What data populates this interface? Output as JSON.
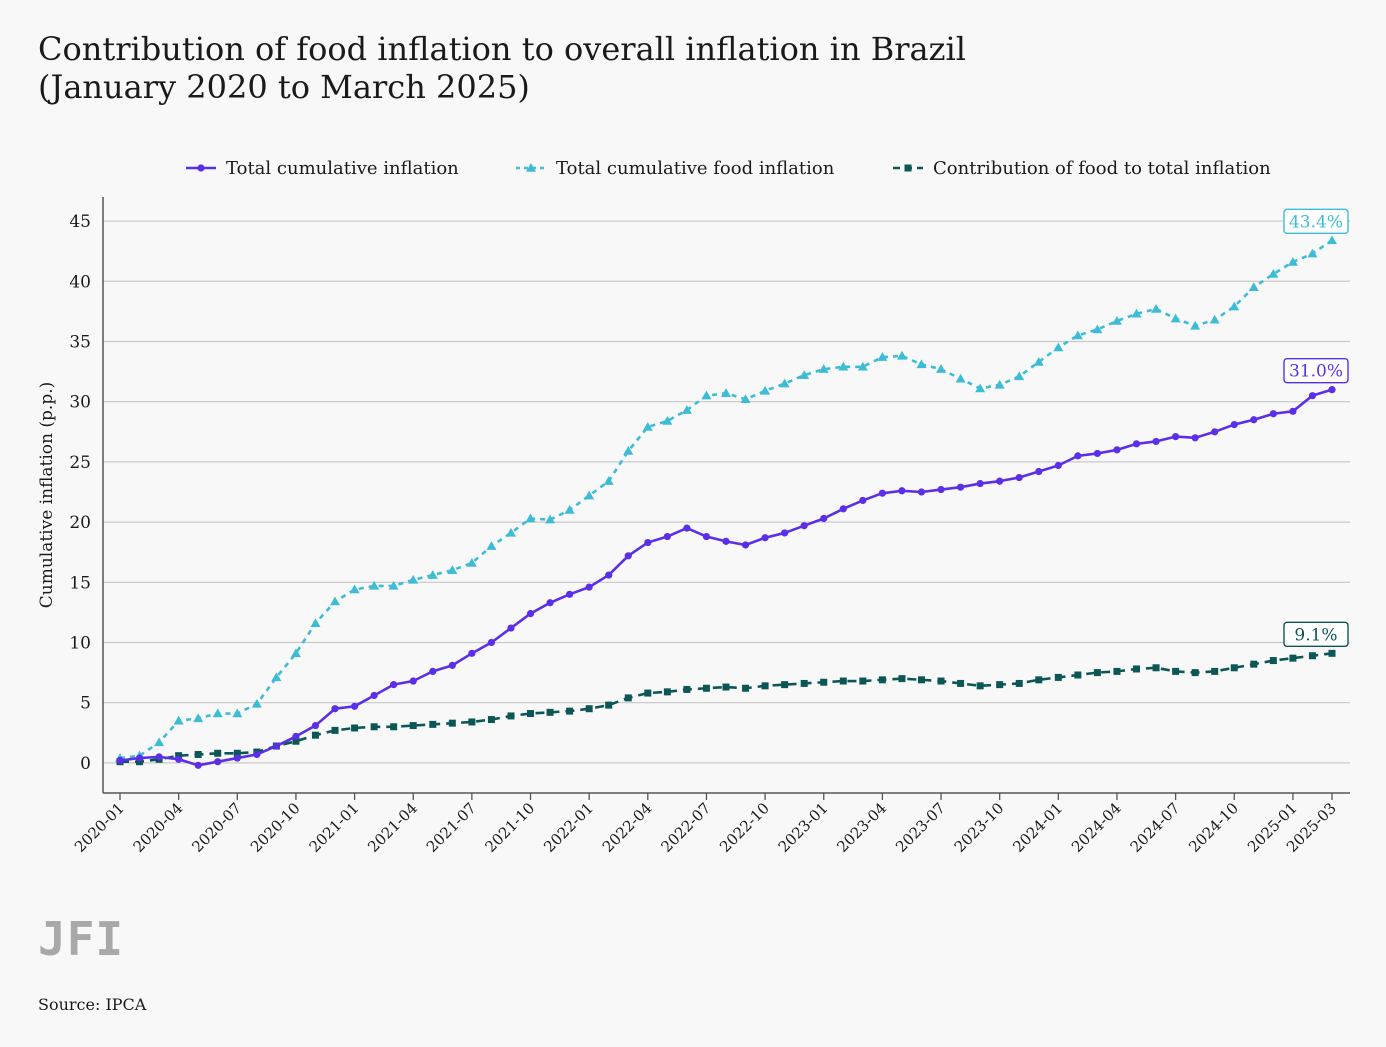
{
  "title_line1": "Contribution of food inflation to overall inflation in Brazil",
  "title_line2": "(January 2020 to March 2025)",
  "brand": "JFI",
  "source": "Source: IPCA",
  "colors": {
    "total": "#5b2ee8",
    "food": "#3dbcd6",
    "contribution": "#0d5656",
    "grid": "#c9c9c9",
    "axis": "#555555"
  },
  "chart_data": {
    "type": "line",
    "ylabel": "Cumulative inflation (p.p.)",
    "xlabel": "",
    "ylim": [
      -2.5,
      47
    ],
    "yticks": [
      0,
      5,
      10,
      15,
      20,
      25,
      30,
      35,
      40,
      45
    ],
    "grid": "horizontal",
    "legend_position": "top",
    "x": [
      "2020-01",
      "2020-02",
      "2020-03",
      "2020-04",
      "2020-05",
      "2020-06",
      "2020-07",
      "2020-08",
      "2020-09",
      "2020-10",
      "2020-11",
      "2020-12",
      "2021-01",
      "2021-02",
      "2021-03",
      "2021-04",
      "2021-05",
      "2021-06",
      "2021-07",
      "2021-08",
      "2021-09",
      "2021-10",
      "2021-11",
      "2021-12",
      "2022-01",
      "2022-02",
      "2022-03",
      "2022-04",
      "2022-05",
      "2022-06",
      "2022-07",
      "2022-08",
      "2022-09",
      "2022-10",
      "2022-11",
      "2022-12",
      "2023-01",
      "2023-02",
      "2023-03",
      "2023-04",
      "2023-05",
      "2023-06",
      "2023-07",
      "2023-08",
      "2023-09",
      "2023-10",
      "2023-11",
      "2023-12",
      "2024-01",
      "2024-02",
      "2024-03",
      "2024-04",
      "2024-05",
      "2024-06",
      "2024-07",
      "2024-08",
      "2024-09",
      "2024-10",
      "2024-11",
      "2024-12",
      "2025-01",
      "2025-02",
      "2025-03"
    ],
    "xtick_labels": [
      "2020-01",
      "2020-04",
      "2020-07",
      "2020-10",
      "2021-01",
      "2021-04",
      "2021-07",
      "2021-10",
      "2022-01",
      "2022-04",
      "2022-07",
      "2022-10",
      "2023-01",
      "2023-04",
      "2023-07",
      "2023-10",
      "2024-01",
      "2024-04",
      "2024-07",
      "2024-10",
      "2025-01",
      "2025-03"
    ],
    "series": [
      {
        "name": "Total cumulative inflation",
        "key": "total",
        "marker": "circle",
        "dash": "solid",
        "end_label": "31.0%",
        "values": [
          0.2,
          0.4,
          0.5,
          0.3,
          -0.2,
          0.1,
          0.4,
          0.7,
          1.4,
          2.2,
          3.1,
          4.5,
          4.7,
          5.6,
          6.5,
          6.8,
          7.6,
          8.1,
          9.1,
          10.0,
          11.2,
          12.4,
          13.3,
          14.0,
          14.6,
          15.6,
          17.2,
          18.3,
          18.8,
          19.5,
          18.8,
          18.4,
          18.1,
          18.7,
          19.1,
          19.7,
          20.3,
          21.1,
          21.8,
          22.4,
          22.6,
          22.5,
          22.7,
          22.9,
          23.2,
          23.4,
          23.7,
          24.2,
          24.7,
          25.5,
          25.7,
          26.0,
          26.5,
          26.7,
          27.1,
          27.0,
          27.5,
          28.1,
          28.5,
          29.0,
          29.2,
          30.5,
          31.0
        ]
      },
      {
        "name": "Total cumulative food inflation",
        "key": "food",
        "marker": "triangle",
        "dash": "dotted",
        "end_label": "43.4%",
        "values": [
          0.4,
          0.6,
          1.7,
          3.5,
          3.7,
          4.1,
          4.1,
          4.9,
          7.1,
          9.1,
          11.6,
          13.4,
          14.4,
          14.7,
          14.7,
          15.2,
          15.6,
          16.0,
          16.6,
          18.0,
          19.1,
          20.3,
          20.2,
          21.0,
          22.2,
          23.4,
          25.9,
          27.9,
          28.4,
          29.3,
          30.5,
          30.7,
          30.2,
          30.9,
          31.5,
          32.2,
          32.7,
          32.9,
          32.9,
          33.7,
          33.8,
          33.1,
          32.7,
          31.9,
          31.1,
          31.4,
          32.1,
          33.3,
          34.5,
          35.5,
          36.0,
          36.7,
          37.3,
          37.7,
          36.9,
          36.3,
          36.8,
          37.9,
          39.5,
          40.6,
          41.6,
          42.3,
          43.4
        ]
      },
      {
        "name": "Contribution of food to total inflation",
        "key": "contribution",
        "marker": "square",
        "dash": "dashed",
        "end_label": "9.1%",
        "values": [
          0.1,
          0.1,
          0.3,
          0.6,
          0.7,
          0.8,
          0.8,
          0.9,
          1.4,
          1.8,
          2.3,
          2.7,
          2.9,
          3.0,
          3.0,
          3.1,
          3.2,
          3.3,
          3.4,
          3.6,
          3.9,
          4.1,
          4.2,
          4.3,
          4.5,
          4.8,
          5.4,
          5.8,
          5.9,
          6.1,
          6.2,
          6.3,
          6.2,
          6.4,
          6.5,
          6.6,
          6.7,
          6.8,
          6.8,
          6.9,
          7.0,
          6.9,
          6.8,
          6.6,
          6.4,
          6.5,
          6.6,
          6.9,
          7.1,
          7.3,
          7.5,
          7.6,
          7.8,
          7.9,
          7.6,
          7.5,
          7.6,
          7.9,
          8.2,
          8.5,
          8.7,
          8.9,
          9.1
        ]
      }
    ]
  }
}
